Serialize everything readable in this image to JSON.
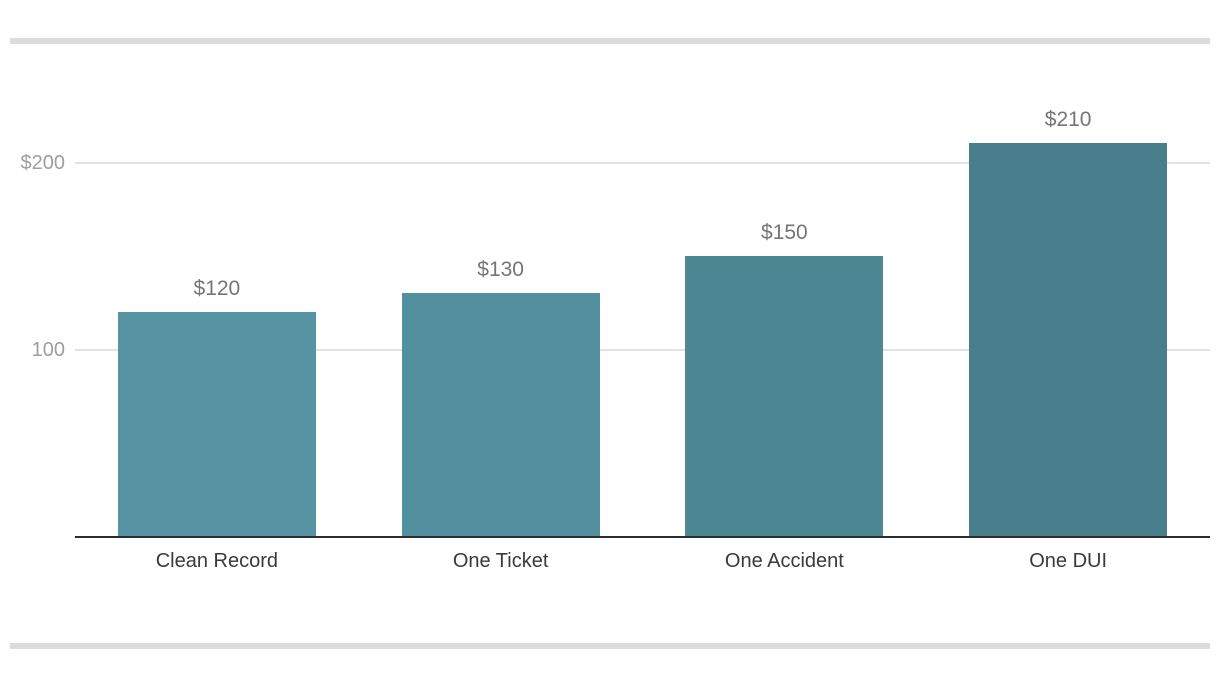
{
  "chart_data": {
    "type": "bar",
    "title": "",
    "xlabel": "",
    "ylabel": "",
    "categories": [
      "Clean Record",
      "One Ticket",
      "One Accident",
      "One DUI"
    ],
    "values": [
      120,
      130,
      150,
      210
    ],
    "value_labels": [
      "$120",
      "$130",
      "$150",
      "$210"
    ],
    "bar_colors": [
      "#5794a3",
      "#52909f",
      "#4d8794",
      "#497e8c"
    ],
    "y_ticks": [
      {
        "label": "$200",
        "value": 200
      },
      {
        "label": "100",
        "value": 100
      }
    ],
    "ylim": [
      0,
      225
    ],
    "grid": "horizontal-only",
    "legend": "none"
  },
  "style_colors": {
    "gridline": "#e2e2e2",
    "axis_line": "#282d30",
    "ytick_text": "#9e9e9e",
    "value_text": "#757575",
    "xlabel_text": "#3a3a3a",
    "divider": "#dcdcdc",
    "background": "#ffffff"
  }
}
